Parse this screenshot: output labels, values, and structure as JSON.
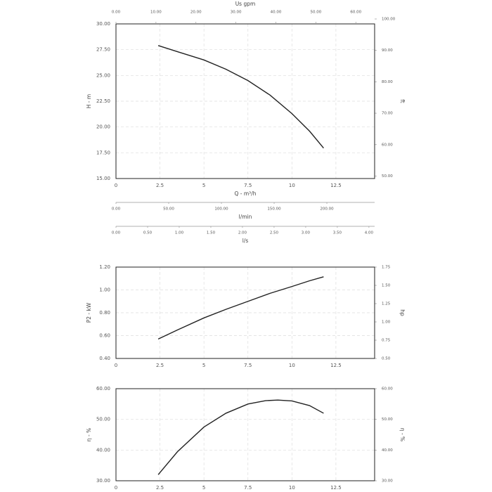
{
  "chart_data": [
    {
      "type": "line",
      "title": null,
      "xlabel": "Q - m³/h",
      "ylabel": "H - m",
      "y2label": "ft",
      "xlim": [
        0,
        14.7
      ],
      "xticks": [
        0,
        2.5,
        5,
        7.5,
        10,
        12.5
      ],
      "ylim": [
        15,
        30
      ],
      "yticks": [
        {
          "value": 15,
          "label": "15.00"
        },
        {
          "value": 17.5,
          "label": "17.50"
        },
        {
          "value": 20,
          "label": "20.00"
        },
        {
          "value": 22.5,
          "label": "22.50"
        },
        {
          "value": 25,
          "label": "25.00"
        },
        {
          "value": 27.5,
          "label": "27.50"
        },
        {
          "value": 30,
          "label": "30.00"
        }
      ],
      "y2lim": [
        49.21,
        98.43
      ],
      "y2ticks": [
        {
          "value": 50,
          "label": "50.00"
        },
        {
          "value": 60,
          "label": "60.00"
        },
        {
          "value": 70,
          "label": "70.00"
        },
        {
          "value": 80,
          "label": "80.00"
        },
        {
          "value": 90,
          "label": "90.00"
        },
        {
          "value": 100,
          "label": "100.00"
        }
      ],
      "top_axis": {
        "label": "Us gpm",
        "lim": [
          0,
          64.7
        ],
        "ticks": [
          {
            "value": 0,
            "label": "0.00"
          },
          {
            "value": 10,
            "label": "10.00"
          },
          {
            "value": 20,
            "label": "20.00"
          },
          {
            "value": 30,
            "label": "30.00"
          },
          {
            "value": 40,
            "label": "40.00"
          },
          {
            "value": 50,
            "label": "50.00"
          },
          {
            "value": 60,
            "label": "60.00"
          }
        ]
      },
      "extra_axes": [
        {
          "label": "l/min",
          "lim": [
            0,
            245.3
          ],
          "ticks": [
            {
              "value": 0,
              "label": "0.00"
            },
            {
              "value": 50,
              "label": "50.00"
            },
            {
              "value": 100,
              "label": "100.00"
            },
            {
              "value": 150,
              "label": "150.00"
            },
            {
              "value": 200,
              "label": "200.00"
            }
          ]
        },
        {
          "label": "l/s",
          "lim": [
            0,
            4.09
          ],
          "ticks": [
            {
              "value": 0,
              "label": "0.00"
            },
            {
              "value": 0.5,
              "label": "0.50"
            },
            {
              "value": 1,
              "label": "1.00"
            },
            {
              "value": 1.5,
              "label": "1.50"
            },
            {
              "value": 2,
              "label": "2.00"
            },
            {
              "value": 2.5,
              "label": "2.50"
            },
            {
              "value": 3,
              "label": "3.00"
            },
            {
              "value": 3.5,
              "label": "3.50"
            },
            {
              "value": 4,
              "label": "4.00"
            }
          ]
        }
      ],
      "grid": true,
      "series": [
        {
          "color": "#222222",
          "x": [
            2.4,
            3.5,
            5,
            6.25,
            7.5,
            8.75,
            10,
            11,
            11.8
          ],
          "values": [
            27.9,
            27.3,
            26.5,
            25.6,
            24.5,
            23.1,
            21.3,
            19.6,
            17.95
          ]
        }
      ]
    },
    {
      "type": "line",
      "title": null,
      "ylabel": "P2 - kW",
      "y2label": "hp",
      "xlim": [
        0,
        14.7
      ],
      "xticks": [
        0,
        2.5,
        5,
        7.5,
        10,
        12.5
      ],
      "ylim": [
        0.4,
        1.2
      ],
      "yticks": [
        {
          "value": 0.4,
          "label": "0.40"
        },
        {
          "value": 0.6,
          "label": "0.60"
        },
        {
          "value": 0.8,
          "label": "0.80"
        },
        {
          "value": 1.0,
          "label": "1.00"
        },
        {
          "value": 1.2,
          "label": "1.20"
        }
      ],
      "y2lim": [
        0.5,
        1.75
      ],
      "y2ticks": [
        {
          "value": 0.5,
          "label": "0.50"
        },
        {
          "value": 0.75,
          "label": "0.75"
        },
        {
          "value": 1.0,
          "label": "1.00"
        },
        {
          "value": 1.25,
          "label": "1.25"
        },
        {
          "value": 1.5,
          "label": "1.50"
        },
        {
          "value": 1.75,
          "label": "1.75"
        }
      ],
      "grid": true,
      "series": [
        {
          "color": "#222222",
          "x": [
            2.4,
            3.5,
            5,
            6.25,
            7.5,
            8.75,
            10,
            11,
            11.8
          ],
          "values": [
            0.57,
            0.65,
            0.755,
            0.83,
            0.9,
            0.97,
            1.03,
            1.08,
            1.115
          ]
        }
      ]
    },
    {
      "type": "line",
      "title": null,
      "ylabel": "η - %",
      "y2label": "η - %",
      "xlim": [
        0,
        14.7
      ],
      "xticks": [
        0,
        2.5,
        5,
        7.5,
        10,
        12.5
      ],
      "ylim": [
        30,
        60
      ],
      "yticks": [
        {
          "value": 30,
          "label": "30.00"
        },
        {
          "value": 40,
          "label": "40.00"
        },
        {
          "value": 50,
          "label": "50.00"
        },
        {
          "value": 60,
          "label": "60.00"
        }
      ],
      "y2lim": [
        30,
        60
      ],
      "y2ticks": [
        {
          "value": 30,
          "label": "30.00"
        },
        {
          "value": 40,
          "label": "40.00"
        },
        {
          "value": 50,
          "label": "50.00"
        },
        {
          "value": 60,
          "label": "60.00"
        }
      ],
      "grid": true,
      "series": [
        {
          "color": "#222222",
          "x": [
            2.4,
            3.5,
            5,
            6.25,
            7.5,
            8.5,
            9.2,
            10,
            11,
            11.8
          ],
          "values": [
            32,
            39.5,
            47.5,
            52,
            55,
            56.1,
            56.3,
            56,
            54.5,
            52
          ]
        }
      ]
    }
  ]
}
